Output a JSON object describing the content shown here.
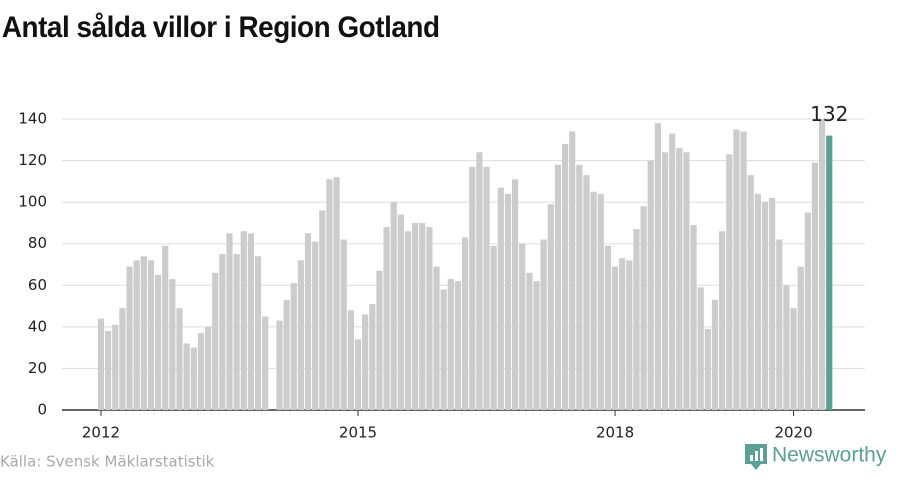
{
  "chart_data": {
    "type": "bar",
    "title": "Antal sålda villor i Region Gotland",
    "source": "Källa: Svensk Mäklarstatistik",
    "brand": "Newsworthy",
    "categories": [
      "2012",
      null,
      null,
      null,
      null,
      null,
      null,
      null,
      null,
      null,
      null,
      null,
      null,
      null,
      null,
      null,
      null,
      null,
      null,
      null,
      null,
      null,
      null,
      null,
      null,
      null,
      null,
      null,
      null,
      null,
      null,
      null,
      null,
      null,
      null,
      null,
      "2015",
      null,
      null,
      null,
      null,
      null,
      null,
      null,
      null,
      null,
      null,
      null,
      null,
      null,
      null,
      null,
      null,
      null,
      null,
      null,
      null,
      null,
      null,
      null,
      null,
      null,
      null,
      null,
      null,
      null,
      null,
      null,
      null,
      null,
      null,
      null,
      "2018",
      null,
      null,
      null,
      null,
      null,
      null,
      null,
      null,
      null,
      null,
      null,
      null,
      null,
      null,
      null,
      null,
      null,
      null,
      null,
      null,
      null,
      null,
      null,
      null,
      "2020",
      null,
      null,
      null,
      null,
      null
    ],
    "values": [
      44,
      38,
      41,
      49,
      69,
      72,
      74,
      72,
      65,
      79,
      63,
      49,
      32,
      30,
      37,
      40,
      66,
      75,
      85,
      75,
      86,
      85,
      74,
      45,
      null,
      43,
      53,
      61,
      72,
      85,
      81,
      96,
      111,
      112,
      82,
      48,
      34,
      46,
      51,
      67,
      88,
      100,
      94,
      86,
      90,
      90,
      88,
      69,
      58,
      63,
      62,
      83,
      117,
      124,
      117,
      79,
      107,
      104,
      111,
      80,
      66,
      62,
      82,
      99,
      118,
      128,
      134,
      118,
      113,
      105,
      104,
      79,
      69,
      73,
      72,
      87,
      98,
      120,
      138,
      124,
      133,
      126,
      124,
      89,
      59,
      39,
      53,
      86,
      123,
      135,
      134,
      113,
      104,
      100,
      102,
      82,
      60,
      49,
      69,
      95,
      119,
      140,
      132
    ],
    "color": "#cccccc",
    "last_color": "#5c9f95",
    "ylim": [
      0,
      140
    ],
    "yticks": [
      0,
      20,
      40,
      60,
      80,
      100,
      120,
      140
    ],
    "grid": true
  }
}
